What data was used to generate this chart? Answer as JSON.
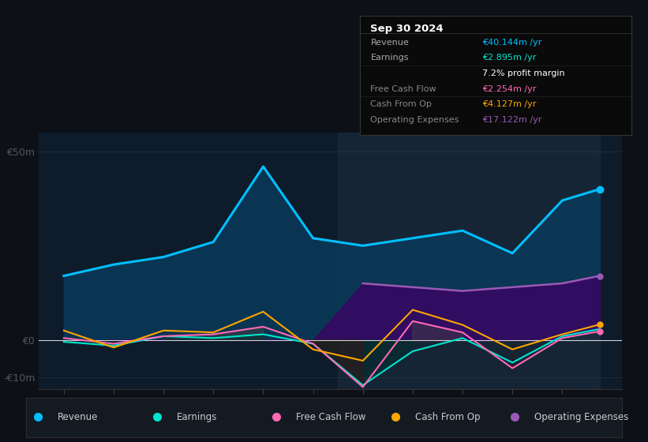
{
  "bg_color": "#0d1117",
  "plot_bg_color": "#0d1b2a",
  "grid_color": "#2a3a4a",
  "zero_line_color": "#ffffff",
  "years": [
    2014,
    2015,
    2016,
    2017,
    2018,
    2019,
    2020,
    2021,
    2022,
    2023,
    2024,
    2024.75
  ],
  "revenue": [
    17,
    20,
    22,
    26,
    46,
    27,
    25,
    27,
    29,
    23,
    37,
    40
  ],
  "earnings": [
    -0.5,
    -1.5,
    1.0,
    0.5,
    1.5,
    -1.0,
    -12,
    -3,
    0.5,
    -6,
    1.0,
    2.9
  ],
  "free_cash_flow": [
    0.5,
    -1.0,
    1.0,
    1.5,
    3.5,
    -1.0,
    -12.5,
    5.0,
    2.0,
    -7.5,
    0.5,
    2.3
  ],
  "cash_from_op": [
    2.5,
    -2.0,
    2.5,
    2.0,
    7.5,
    -2.5,
    -5.5,
    8.0,
    4.0,
    -2.5,
    1.5,
    4.1
  ],
  "operating_expenses": [
    0,
    0,
    0,
    0,
    0,
    0,
    15,
    14,
    13,
    14,
    15,
    17
  ],
  "highlight_start": 2019.5,
  "highlight_end": 2024.75,
  "revenue_color": "#00bfff",
  "earnings_color": "#00e5cc",
  "fcf_color": "#ff69b4",
  "cashop_color": "#ffa500",
  "opex_color": "#9b59b6",
  "revenue_fill": "#0a3a5a",
  "opex_fill": "#4b0082",
  "ylim_min": -13,
  "ylim_max": 55,
  "yticks": [
    -10,
    0,
    50
  ],
  "ytick_labels": [
    "-€10m",
    "€0",
    "€50m"
  ],
  "xlim_min": 2013.5,
  "xlim_max": 2025.2,
  "xticks": [
    2014,
    2015,
    2016,
    2017,
    2018,
    2019,
    2020,
    2021,
    2022,
    2023,
    2024
  ],
  "infobox": {
    "title": "Sep 30 2024",
    "rows": [
      {
        "label": "Revenue",
        "value": "€40.144m /yr",
        "value_color": "#00bfff",
        "label_color": "#aaaaaa"
      },
      {
        "label": "Earnings",
        "value": "€2.895m /yr",
        "value_color": "#00e5cc",
        "label_color": "#aaaaaa"
      },
      {
        "label": "",
        "value": "7.2% profit margin",
        "value_color": "#ffffff",
        "label_color": "#aaaaaa"
      },
      {
        "label": "Free Cash Flow",
        "value": "€2.254m /yr",
        "value_color": "#ff69b4",
        "label_color": "#888888"
      },
      {
        "label": "Cash From Op",
        "value": "€4.127m /yr",
        "value_color": "#ffa500",
        "label_color": "#888888"
      },
      {
        "label": "Operating Expenses",
        "value": "€17.122m /yr",
        "value_color": "#9b59b6",
        "label_color": "#888888"
      }
    ]
  },
  "legend": [
    {
      "label": "Revenue",
      "color": "#00bfff"
    },
    {
      "label": "Earnings",
      "color": "#00e5cc"
    },
    {
      "label": "Free Cash Flow",
      "color": "#ff69b4"
    },
    {
      "label": "Cash From Op",
      "color": "#ffa500"
    },
    {
      "label": "Operating Expenses",
      "color": "#9b59b6"
    }
  ]
}
